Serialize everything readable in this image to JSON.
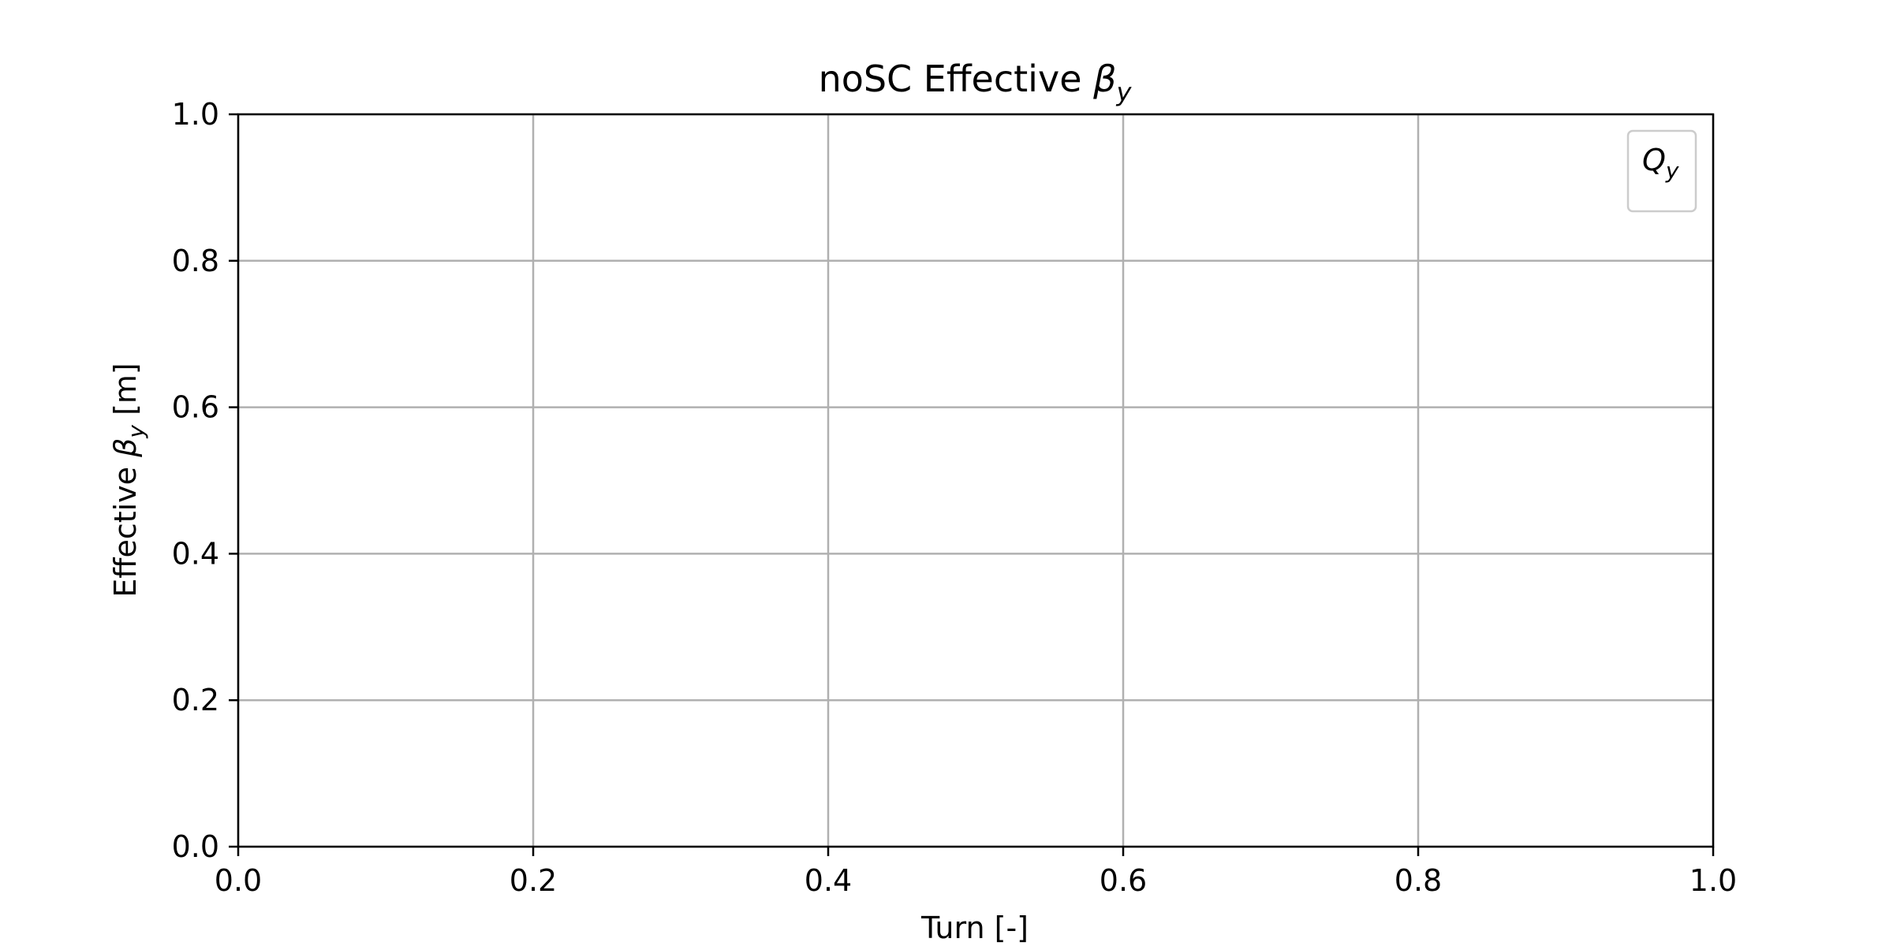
{
  "chart_data": {
    "type": "line",
    "title": {
      "prefix": "noSC Effective ",
      "symbol": "β",
      "subscript": "y"
    },
    "xlabel": "Turn [-]",
    "ylabel": {
      "prefix": "Effective ",
      "symbol": "β",
      "subscript": "y",
      "suffix": " [m]"
    },
    "xlim": [
      0.0,
      1.0
    ],
    "ylim": [
      0.0,
      1.0
    ],
    "xticks": [
      "0.0",
      "0.2",
      "0.4",
      "0.6",
      "0.8",
      "1.0"
    ],
    "yticks": [
      "0.0",
      "0.2",
      "0.4",
      "0.6",
      "0.8",
      "1.0"
    ],
    "grid": true,
    "legend": {
      "placement": "top-right",
      "entries": [
        {
          "symbol": "Q",
          "subscript": "y"
        }
      ]
    },
    "series": [
      {
        "name": "Qy",
        "x": [],
        "y": []
      }
    ],
    "colors": {
      "axes": "#000000",
      "grid": "#b0b0b0",
      "legend_border": "#cccccc"
    }
  }
}
